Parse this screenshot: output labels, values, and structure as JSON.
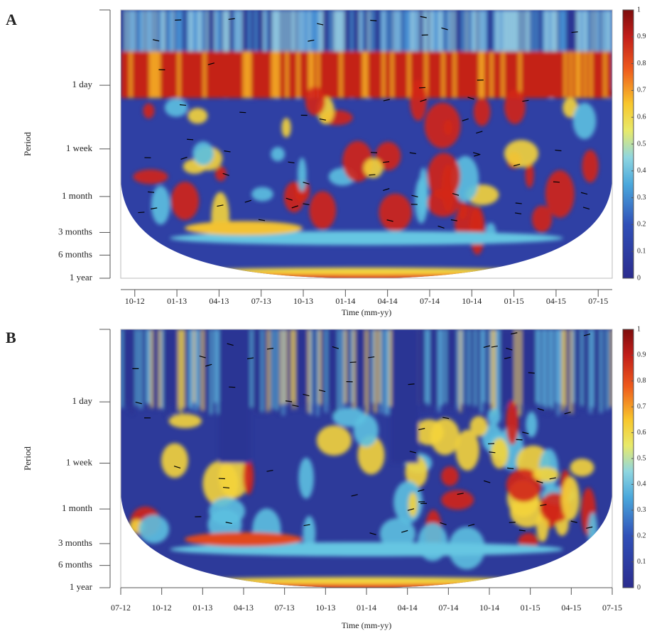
{
  "chart_data": [
    {
      "type": "heatmap",
      "panel_label": "A",
      "y_label": "Period",
      "x_label": "Time (mm-yy)",
      "log_y": true,
      "ylim": [
        0.1,
        365
      ],
      "yticks": [
        {
          "value": 1,
          "label": "1 day"
        },
        {
          "value": 7,
          "label": "1 week"
        },
        {
          "value": 30,
          "label": "1 month"
        },
        {
          "value": 90,
          "label": "3 months"
        },
        {
          "value": 180,
          "label": "6 months"
        },
        {
          "value": 365,
          "label": "1 year"
        }
      ],
      "xlim": [
        "2012-09",
        "2015-08"
      ],
      "xticks": [
        {
          "value": "2012-10",
          "label": "10-12"
        },
        {
          "value": "2013-01",
          "label": "01-13"
        },
        {
          "value": "2013-04",
          "label": "04-13"
        },
        {
          "value": "2013-07",
          "label": "07-13"
        },
        {
          "value": "2013-10",
          "label": "10-13"
        },
        {
          "value": "2014-01",
          "label": "01-14"
        },
        {
          "value": "2014-04",
          "label": "04-14"
        },
        {
          "value": "2014-07",
          "label": "07-14"
        },
        {
          "value": "2014-10",
          "label": "10-14"
        },
        {
          "value": "2015-01",
          "label": "01-15"
        },
        {
          "value": "2015-04",
          "label": "04-15"
        },
        {
          "value": "2015-07",
          "label": "07-15"
        }
      ],
      "clim": [
        0,
        1
      ],
      "cticks": [
        0,
        0.1,
        0.2,
        0.3,
        0.4,
        0.5,
        0.6,
        0.7,
        0.8,
        0.9,
        1
      ]
    },
    {
      "type": "heatmap",
      "panel_label": "B",
      "y_label": "Period",
      "x_label": "Time (mm-yy)",
      "log_y": true,
      "ylim": [
        0.1,
        365
      ],
      "yticks": [
        {
          "value": 1,
          "label": "1 day"
        },
        {
          "value": 7,
          "label": "1 week"
        },
        {
          "value": 30,
          "label": "1 month"
        },
        {
          "value": 90,
          "label": "3 months"
        },
        {
          "value": 180,
          "label": "6 months"
        },
        {
          "value": 365,
          "label": "1 year"
        }
      ],
      "xlim": [
        "2012-07",
        "2015-07"
      ],
      "xticks": [
        {
          "value": "2012-07",
          "label": "07-12"
        },
        {
          "value": "2012-10",
          "label": "10-12"
        },
        {
          "value": "2013-01",
          "label": "01-13"
        },
        {
          "value": "2013-04",
          "label": "04-13"
        },
        {
          "value": "2013-07",
          "label": "07-13"
        },
        {
          "value": "2013-10",
          "label": "10-13"
        },
        {
          "value": "2014-01",
          "label": "01-14"
        },
        {
          "value": "2014-04",
          "label": "04-14"
        },
        {
          "value": "2014-07",
          "label": "07-14"
        },
        {
          "value": "2014-10",
          "label": "10-14"
        },
        {
          "value": "2015-01",
          "label": "01-15"
        },
        {
          "value": "2015-04",
          "label": "04-15"
        },
        {
          "value": "2015-07",
          "label": "07-15"
        }
      ],
      "clim": [
        0,
        1
      ],
      "cticks": [
        0,
        0.1,
        0.2,
        0.3,
        0.4,
        0.5,
        0.6,
        0.7,
        0.8,
        0.9,
        1
      ]
    }
  ]
}
